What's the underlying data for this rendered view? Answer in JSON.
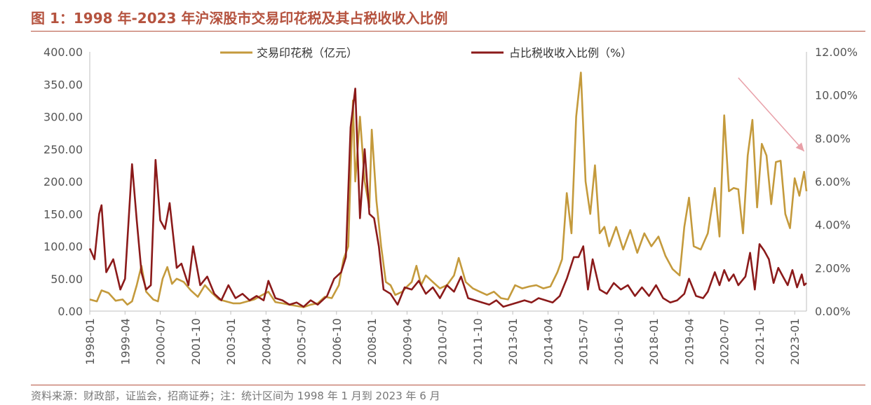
{
  "title": "图 1：1998 年-2023 年沪深股市交易印花税及其占税收收入比例",
  "source": "资料来源：财政部，证监会，招商证券；注：统计区间为 1998 年 1 月到 2023 年 6 月",
  "chart_data": {
    "type": "line",
    "title": "图 1：1998 年-2023 年沪深股市交易印花税及其占税收收入比例",
    "legend_position": "top",
    "grid": false,
    "x_tick_labels": [
      "1998-01",
      "1999-04",
      "2000-07",
      "2001-10",
      "2003-01",
      "2004-04",
      "2005-07",
      "2006-10",
      "2008-01",
      "2009-04",
      "2010-07",
      "2011-10",
      "2013-01",
      "2014-04",
      "2015-07",
      "2016-10",
      "2018-01",
      "2019-04",
      "2020-07",
      "2021-10",
      "2023-01"
    ],
    "x_range": [
      "1998-01",
      "2023-06"
    ],
    "y_left": {
      "ylim": [
        0,
        400
      ],
      "ticks": [
        "0.00",
        "50.00",
        "100.00",
        "150.00",
        "200.00",
        "250.00",
        "300.00",
        "350.00",
        "400.00"
      ]
    },
    "y_right": {
      "ylim": [
        0,
        12
      ],
      "ticks": [
        "0.00%",
        "2.00%",
        "4.00%",
        "6.00%",
        "8.00%",
        "10.00%",
        "12.00%"
      ]
    },
    "series": [
      {
        "name": "交易印花税（亿元）",
        "axis": "left",
        "color": "#c49a3c",
        "points": [
          [
            "1998-01",
            18
          ],
          [
            "1998-04",
            15
          ],
          [
            "1998-06",
            32
          ],
          [
            "1998-09",
            28
          ],
          [
            "1998-12",
            16
          ],
          [
            "1999-03",
            18
          ],
          [
            "1999-05",
            10
          ],
          [
            "1999-07",
            15
          ],
          [
            "1999-09",
            40
          ],
          [
            "1999-11",
            70
          ],
          [
            "2000-01",
            30
          ],
          [
            "2000-04",
            18
          ],
          [
            "2000-06",
            15
          ],
          [
            "2000-08",
            50
          ],
          [
            "2000-10",
            68
          ],
          [
            "2000-12",
            42
          ],
          [
            "2001-02",
            50
          ],
          [
            "2001-05",
            45
          ],
          [
            "2001-08",
            32
          ],
          [
            "2001-11",
            22
          ],
          [
            "2002-02",
            40
          ],
          [
            "2002-05",
            28
          ],
          [
            "2002-08",
            18
          ],
          [
            "2002-11",
            15
          ],
          [
            "2003-02",
            12
          ],
          [
            "2003-05",
            12
          ],
          [
            "2003-08",
            15
          ],
          [
            "2003-11",
            18
          ],
          [
            "2004-02",
            24
          ],
          [
            "2004-05",
            30
          ],
          [
            "2004-08",
            14
          ],
          [
            "2004-11",
            12
          ],
          [
            "2005-02",
            10
          ],
          [
            "2005-05",
            8
          ],
          [
            "2005-08",
            6
          ],
          [
            "2005-11",
            10
          ],
          [
            "2006-02",
            12
          ],
          [
            "2006-05",
            22
          ],
          [
            "2006-08",
            20
          ],
          [
            "2006-11",
            40
          ],
          [
            "2007-01",
            80
          ],
          [
            "2007-03",
            100
          ],
          [
            "2007-05",
            325
          ],
          [
            "2007-06",
            200
          ],
          [
            "2007-08",
            300
          ],
          [
            "2007-10",
            200
          ],
          [
            "2007-12",
            160
          ],
          [
            "2008-01",
            280
          ],
          [
            "2008-03",
            170
          ],
          [
            "2008-05",
            100
          ],
          [
            "2008-07",
            45
          ],
          [
            "2008-09",
            40
          ],
          [
            "2008-11",
            25
          ],
          [
            "2009-02",
            30
          ],
          [
            "2009-04",
            38
          ],
          [
            "2009-06",
            45
          ],
          [
            "2009-08",
            70
          ],
          [
            "2009-10",
            40
          ],
          [
            "2009-12",
            55
          ],
          [
            "2010-03",
            45
          ],
          [
            "2010-06",
            35
          ],
          [
            "2010-09",
            40
          ],
          [
            "2010-12",
            55
          ],
          [
            "2011-02",
            82
          ],
          [
            "2011-05",
            45
          ],
          [
            "2011-08",
            35
          ],
          [
            "2011-11",
            30
          ],
          [
            "2012-02",
            25
          ],
          [
            "2012-05",
            30
          ],
          [
            "2012-08",
            20
          ],
          [
            "2012-11",
            18
          ],
          [
            "2013-02",
            40
          ],
          [
            "2013-05",
            35
          ],
          [
            "2013-08",
            38
          ],
          [
            "2013-11",
            40
          ],
          [
            "2014-02",
            35
          ],
          [
            "2014-05",
            38
          ],
          [
            "2014-08",
            60
          ],
          [
            "2014-10",
            80
          ],
          [
            "2014-12",
            182
          ],
          [
            "2015-02",
            120
          ],
          [
            "2015-04",
            300
          ],
          [
            "2015-06",
            368
          ],
          [
            "2015-08",
            200
          ],
          [
            "2015-10",
            150
          ],
          [
            "2015-12",
            225
          ],
          [
            "2016-02",
            120
          ],
          [
            "2016-04",
            130
          ],
          [
            "2016-06",
            100
          ],
          [
            "2016-09",
            130
          ],
          [
            "2016-12",
            95
          ],
          [
            "2017-03",
            125
          ],
          [
            "2017-06",
            90
          ],
          [
            "2017-09",
            120
          ],
          [
            "2017-12",
            100
          ],
          [
            "2018-03",
            115
          ],
          [
            "2018-06",
            85
          ],
          [
            "2018-09",
            65
          ],
          [
            "2018-12",
            55
          ],
          [
            "2019-02",
            130
          ],
          [
            "2019-04",
            175
          ],
          [
            "2019-06",
            100
          ],
          [
            "2019-09",
            95
          ],
          [
            "2019-12",
            120
          ],
          [
            "2020-03",
            190
          ],
          [
            "2020-05",
            115
          ],
          [
            "2020-07",
            302
          ],
          [
            "2020-09",
            185
          ],
          [
            "2020-11",
            190
          ],
          [
            "2021-01",
            188
          ],
          [
            "2021-03",
            120
          ],
          [
            "2021-05",
            240
          ],
          [
            "2021-07",
            295
          ],
          [
            "2021-09",
            160
          ],
          [
            "2021-11",
            258
          ],
          [
            "2022-01",
            240
          ],
          [
            "2022-03",
            165
          ],
          [
            "2022-05",
            230
          ],
          [
            "2022-07",
            232
          ],
          [
            "2022-09",
            150
          ],
          [
            "2022-11",
            128
          ],
          [
            "2023-01",
            205
          ],
          [
            "2023-03",
            178
          ],
          [
            "2023-05",
            215
          ],
          [
            "2023-06",
            185
          ]
        ]
      },
      {
        "name": "占比税收收入比例（%）",
        "axis": "right",
        "color": "#8b1a1a",
        "points": [
          [
            "1998-01",
            2.9
          ],
          [
            "1998-03",
            2.4
          ],
          [
            "1998-05",
            4.5
          ],
          [
            "1998-06",
            4.9
          ],
          [
            "1998-08",
            1.8
          ],
          [
            "1998-11",
            2.4
          ],
          [
            "1999-02",
            1.0
          ],
          [
            "1999-04",
            1.5
          ],
          [
            "1999-07",
            6.8
          ],
          [
            "1999-09",
            4.2
          ],
          [
            "1999-11",
            1.8
          ],
          [
            "2000-01",
            1.0
          ],
          [
            "2000-03",
            1.2
          ],
          [
            "2000-05",
            7.0
          ],
          [
            "2000-07",
            4.2
          ],
          [
            "2000-09",
            3.8
          ],
          [
            "2000-11",
            5.0
          ],
          [
            "2001-02",
            2.0
          ],
          [
            "2001-04",
            2.2
          ],
          [
            "2001-07",
            1.2
          ],
          [
            "2001-09",
            3.0
          ],
          [
            "2001-12",
            1.2
          ],
          [
            "2002-03",
            1.6
          ],
          [
            "2002-06",
            0.8
          ],
          [
            "2002-09",
            0.5
          ],
          [
            "2002-12",
            1.2
          ],
          [
            "2003-03",
            0.6
          ],
          [
            "2003-06",
            0.8
          ],
          [
            "2003-09",
            0.5
          ],
          [
            "2003-12",
            0.7
          ],
          [
            "2004-03",
            0.5
          ],
          [
            "2004-05",
            1.4
          ],
          [
            "2004-08",
            0.6
          ],
          [
            "2004-11",
            0.5
          ],
          [
            "2005-02",
            0.3
          ],
          [
            "2005-05",
            0.4
          ],
          [
            "2005-08",
            0.2
          ],
          [
            "2005-11",
            0.5
          ],
          [
            "2006-02",
            0.3
          ],
          [
            "2006-06",
            0.7
          ],
          [
            "2006-09",
            1.5
          ],
          [
            "2006-12",
            1.8
          ],
          [
            "2007-02",
            2.5
          ],
          [
            "2007-04",
            8.5
          ],
          [
            "2007-06",
            10.3
          ],
          [
            "2007-08",
            4.3
          ],
          [
            "2007-10",
            7.5
          ],
          [
            "2007-12",
            4.5
          ],
          [
            "2008-02",
            4.3
          ],
          [
            "2008-04",
            3.0
          ],
          [
            "2008-06",
            1.0
          ],
          [
            "2008-09",
            0.8
          ],
          [
            "2008-12",
            0.3
          ],
          [
            "2009-03",
            1.1
          ],
          [
            "2009-06",
            1.0
          ],
          [
            "2009-09",
            1.4
          ],
          [
            "2009-12",
            0.8
          ],
          [
            "2010-03",
            1.1
          ],
          [
            "2010-06",
            0.6
          ],
          [
            "2010-09",
            1.2
          ],
          [
            "2010-12",
            0.9
          ],
          [
            "2011-03",
            1.6
          ],
          [
            "2011-06",
            0.6
          ],
          [
            "2011-09",
            0.5
          ],
          [
            "2011-12",
            0.4
          ],
          [
            "2012-03",
            0.3
          ],
          [
            "2012-06",
            0.5
          ],
          [
            "2012-09",
            0.2
          ],
          [
            "2012-12",
            0.3
          ],
          [
            "2013-03",
            0.4
          ],
          [
            "2013-06",
            0.5
          ],
          [
            "2013-09",
            0.4
          ],
          [
            "2013-12",
            0.6
          ],
          [
            "2014-03",
            0.5
          ],
          [
            "2014-06",
            0.4
          ],
          [
            "2014-09",
            0.7
          ],
          [
            "2014-12",
            1.5
          ],
          [
            "2015-03",
            2.5
          ],
          [
            "2015-05",
            2.5
          ],
          [
            "2015-07",
            3.0
          ],
          [
            "2015-09",
            1.0
          ],
          [
            "2015-11",
            2.4
          ],
          [
            "2016-02",
            1.0
          ],
          [
            "2016-05",
            0.8
          ],
          [
            "2016-08",
            1.3
          ],
          [
            "2016-11",
            1.0
          ],
          [
            "2017-02",
            1.2
          ],
          [
            "2017-05",
            0.7
          ],
          [
            "2017-08",
            1.1
          ],
          [
            "2017-11",
            0.7
          ],
          [
            "2018-02",
            1.2
          ],
          [
            "2018-05",
            0.6
          ],
          [
            "2018-08",
            0.4
          ],
          [
            "2018-11",
            0.5
          ],
          [
            "2019-02",
            0.8
          ],
          [
            "2019-04",
            1.5
          ],
          [
            "2019-07",
            0.7
          ],
          [
            "2019-10",
            0.6
          ],
          [
            "2019-12",
            0.9
          ],
          [
            "2020-03",
            1.8
          ],
          [
            "2020-05",
            1.2
          ],
          [
            "2020-07",
            1.9
          ],
          [
            "2020-09",
            1.4
          ],
          [
            "2020-11",
            1.7
          ],
          [
            "2021-01",
            1.2
          ],
          [
            "2021-04",
            1.6
          ],
          [
            "2021-06",
            2.7
          ],
          [
            "2021-08",
            1.0
          ],
          [
            "2021-10",
            3.1
          ],
          [
            "2021-12",
            2.8
          ],
          [
            "2022-02",
            2.4
          ],
          [
            "2022-04",
            1.3
          ],
          [
            "2022-06",
            2.0
          ],
          [
            "2022-08",
            1.6
          ],
          [
            "2022-10",
            1.2
          ],
          [
            "2022-12",
            1.9
          ],
          [
            "2023-02",
            1.1
          ],
          [
            "2023-04",
            1.7
          ],
          [
            "2023-05",
            1.2
          ],
          [
            "2023-06",
            1.3
          ]
        ]
      }
    ],
    "annotation": {
      "type": "arrow",
      "color": "#e8a0a8",
      "from": [
        "2021-01",
        10.8
      ],
      "to": [
        "2023-05",
        7.4
      ]
    }
  }
}
